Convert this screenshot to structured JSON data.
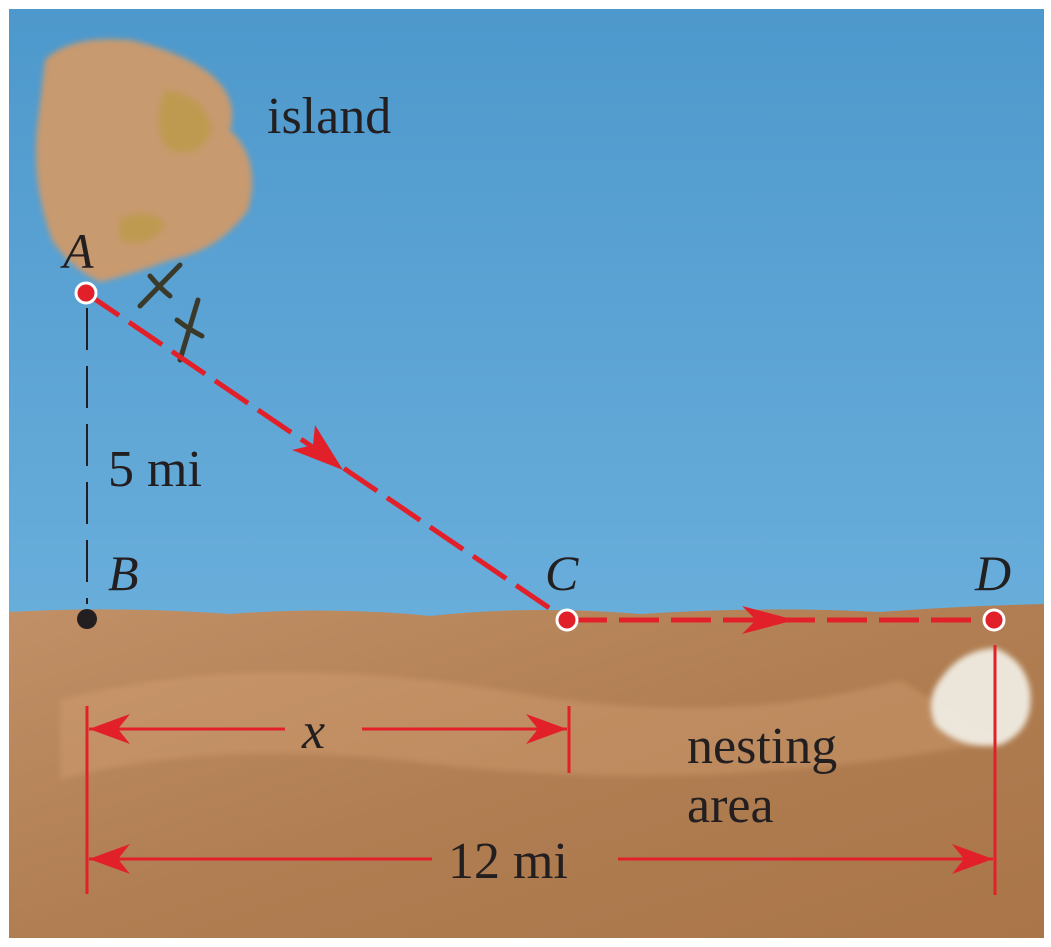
{
  "colors": {
    "water": "#5a9fcf",
    "land": "#b8875c",
    "path": "#e2202a",
    "ink": "#231f20"
  },
  "labels": {
    "island": "island",
    "nesting_line1": "nesting",
    "nesting_line2": "area",
    "point_a": "A",
    "point_b": "B",
    "point_c": "C",
    "point_d": "D",
    "dist_ab": "5 mi",
    "dist_bc": "x",
    "dist_bd": "12 mi"
  },
  "icons": [
    "island-rock",
    "nest-rock",
    "bird-icon"
  ]
}
